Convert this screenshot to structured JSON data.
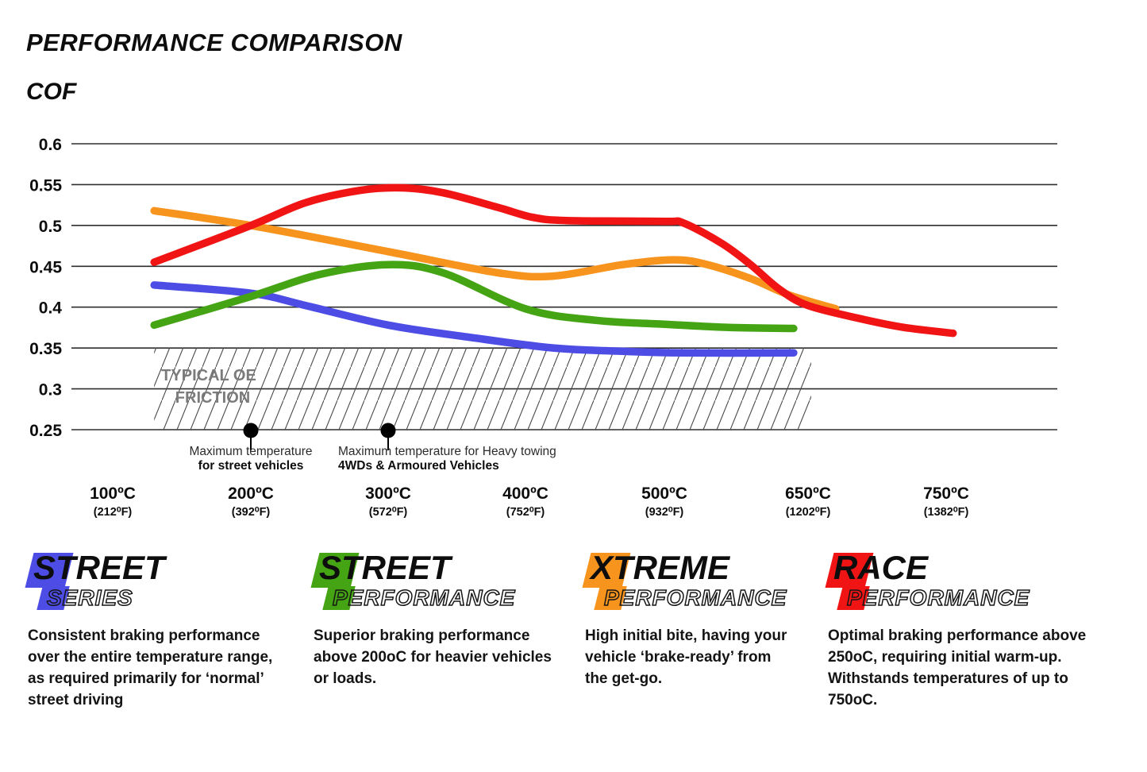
{
  "page": {
    "title": "PERFORMANCE COMPARISON",
    "ylabel": "COF"
  },
  "chart_data": {
    "type": "line",
    "title": "PERFORMANCE COMPARISON",
    "ylabel": "COF",
    "ylim": [
      0.25,
      0.6
    ],
    "grid": true,
    "yticks": [
      "0.6",
      "0.55",
      "0.5",
      "0.45",
      "0.4",
      "0.35",
      "0.3",
      "0.25"
    ],
    "ytick_values": [
      0.6,
      0.55,
      0.5,
      0.45,
      0.4,
      0.35,
      0.3,
      0.25
    ],
    "xticks": [
      {
        "t": 100,
        "label": "100ºC",
        "sub": "(212⁰F)"
      },
      {
        "t": 200,
        "label": "200ºC",
        "sub": "(392⁰F)"
      },
      {
        "t": 300,
        "label": "300ºC",
        "sub": "(572⁰F)"
      },
      {
        "t": 400,
        "label": "400ºC",
        "sub": "(752⁰F)"
      },
      {
        "t": 500,
        "label": "500ºC",
        "sub": "(932⁰F)"
      },
      {
        "t": 650,
        "label": "650ºC",
        "sub": "(1202⁰F)"
      },
      {
        "t": 750,
        "label": "750ºC",
        "sub": "(1382⁰F)"
      }
    ],
    "band": {
      "label_line1": "TYPICAL OE",
      "label_line2": "FRICTION",
      "cof_from": 0.25,
      "cof_to": 0.35,
      "temp_from": 130,
      "temp_to": 640
    },
    "annotations": [
      {
        "t": 200,
        "align": "center",
        "line1": "Maximum temperature",
        "line2": "for street vehicles"
      },
      {
        "t": 300,
        "align": "left",
        "text_x": 426,
        "line1": "Maximum temperature for Heavy towing",
        "line2": "4WDs & Armoured Vehicles"
      }
    ],
    "series": [
      {
        "name": "Street Series",
        "slug": "street-series",
        "color": "#4d4de6",
        "points": [
          [
            130,
            0.427
          ],
          [
            200,
            0.417
          ],
          [
            240,
            0.402
          ],
          [
            300,
            0.378
          ],
          [
            360,
            0.363
          ],
          [
            420,
            0.35
          ],
          [
            470,
            0.346
          ],
          [
            520,
            0.344
          ],
          [
            635,
            0.344
          ]
        ]
      },
      {
        "name": "Street Performance",
        "slug": "street-performance",
        "color": "#44a414",
        "points": [
          [
            130,
            0.378
          ],
          [
            200,
            0.413
          ],
          [
            250,
            0.44
          ],
          [
            300,
            0.452
          ],
          [
            340,
            0.442
          ],
          [
            400,
            0.398
          ],
          [
            450,
            0.384
          ],
          [
            500,
            0.379
          ],
          [
            570,
            0.375
          ],
          [
            635,
            0.374
          ]
        ]
      },
      {
        "name": "Xtreme Performance",
        "slug": "xtreme-performance",
        "color": "#f7941d",
        "points": [
          [
            130,
            0.518
          ],
          [
            200,
            0.5
          ],
          [
            300,
            0.468
          ],
          [
            380,
            0.442
          ],
          [
            420,
            0.438
          ],
          [
            470,
            0.452
          ],
          [
            510,
            0.458
          ],
          [
            545,
            0.452
          ],
          [
            590,
            0.435
          ],
          [
            630,
            0.415
          ],
          [
            670,
            0.398
          ]
        ]
      },
      {
        "name": "Race Performance",
        "slug": "race-performance",
        "color": "#f01414",
        "points": [
          [
            130,
            0.455
          ],
          [
            200,
            0.5
          ],
          [
            240,
            0.528
          ],
          [
            280,
            0.543
          ],
          [
            310,
            0.546
          ],
          [
            340,
            0.54
          ],
          [
            380,
            0.522
          ],
          [
            405,
            0.51
          ],
          [
            430,
            0.506
          ],
          [
            500,
            0.505
          ],
          [
            520,
            0.503
          ],
          [
            560,
            0.478
          ],
          [
            590,
            0.452
          ],
          [
            620,
            0.422
          ],
          [
            650,
            0.402
          ],
          [
            690,
            0.385
          ],
          [
            720,
            0.375
          ],
          [
            755,
            0.368
          ]
        ]
      }
    ]
  },
  "legends": [
    {
      "slug": "street-series",
      "word1": "STREET",
      "word2": "SERIES",
      "color": "#4d4de6",
      "desc": "Consistent braking performance over the entire temperature range, as required primarily for ‘normal’ street driving"
    },
    {
      "slug": "street-performance",
      "word1": "STREET",
      "word2": "PERFORMANCE",
      "color": "#44a414",
      "desc": "Superior braking performance above 200oC for heavier vehicles or loads."
    },
    {
      "slug": "xtreme-performance",
      "word1": "XTREME",
      "word2": "PERFORMANCE",
      "color": "#f7941d",
      "desc": "High initial bite, having your vehicle ‘brake-ready’ from the get-go."
    },
    {
      "slug": "race-performance",
      "word1": "RACE",
      "word2": "PERFORMANCE",
      "color": "#f01414",
      "desc": "Optimal braking performance above 250oC, requiring initial warm-up. Withstands temperatures of up to 750oC."
    }
  ]
}
